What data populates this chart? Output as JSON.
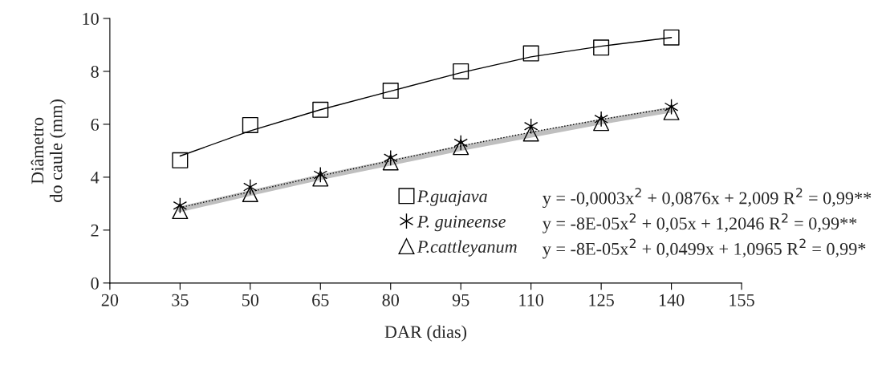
{
  "chart_data": {
    "type": "scatter",
    "xlabel": "DAR (dias)",
    "ylabel": "Diâmetro\ndo caule (mm)",
    "x": [
      35,
      50,
      65,
      80,
      95,
      110,
      125,
      140
    ],
    "xlim": [
      20,
      155
    ],
    "xticks": [
      20,
      35,
      50,
      65,
      80,
      95,
      110,
      125,
      140,
      155
    ],
    "ylim": [
      0,
      10
    ],
    "yticks": [
      0,
      2,
      4,
      6,
      8,
      10
    ],
    "grid": false,
    "legend": "bottom right",
    "series": [
      {
        "type": "line",
        "color": "#bfbfbf",
        "line_style": "solid",
        "marker": "none",
        "x": [
          35,
          50,
          65,
          80,
          95,
          110,
          125,
          140
        ],
        "values": [
          2.79,
          3.4,
          4.0,
          4.55,
          5.1,
          5.6,
          6.1,
          6.55
        ]
      },
      {
        "type": "line",
        "color": "#000000",
        "line_style": "solid",
        "marker": "none",
        "x": [
          35,
          50,
          65,
          80,
          95,
          110,
          125,
          140
        ],
        "values": [
          4.8,
          5.75,
          6.55,
          7.25,
          7.95,
          8.55,
          8.95,
          9.28
        ]
      },
      {
        "type": "line",
        "color": "#000000",
        "line_style": "dotted",
        "marker": "none",
        "x": [
          35,
          50,
          65,
          80,
          95,
          110,
          125,
          140
        ],
        "values": [
          2.85,
          3.45,
          4.05,
          4.62,
          5.18,
          5.7,
          6.18,
          6.62
        ]
      },
      {
        "name": "P.guajava",
        "color": "#000000",
        "marker": "square",
        "values": [
          4.64,
          5.97,
          6.55,
          7.27,
          8.0,
          8.68,
          8.9,
          9.28
        ]
      },
      {
        "name": "P. guineense",
        "color": "#000000",
        "marker": "cross",
        "values": [
          2.93,
          3.63,
          4.09,
          4.73,
          5.3,
          5.93,
          6.2,
          6.66
        ]
      },
      {
        "name": "P.cattleyanum",
        "color": "#000000",
        "marker": "triangle",
        "values": [
          2.72,
          3.36,
          3.95,
          4.56,
          5.14,
          5.65,
          6.05,
          6.46
        ]
      }
    ],
    "annotations": [
      "y = -0,0003x$^{2}$ + 0,0876x + 2,009 R$^{2}$ = 0,99**",
      "y = -8E-05x$^{2}$ + 0,05x + 1,2046 R$^{2}$ = 0,99**",
      "y = -8E-05x$^{2}$ + 0,0499x + 1,0965 R$^{2}$ = 0,99*"
    ]
  }
}
